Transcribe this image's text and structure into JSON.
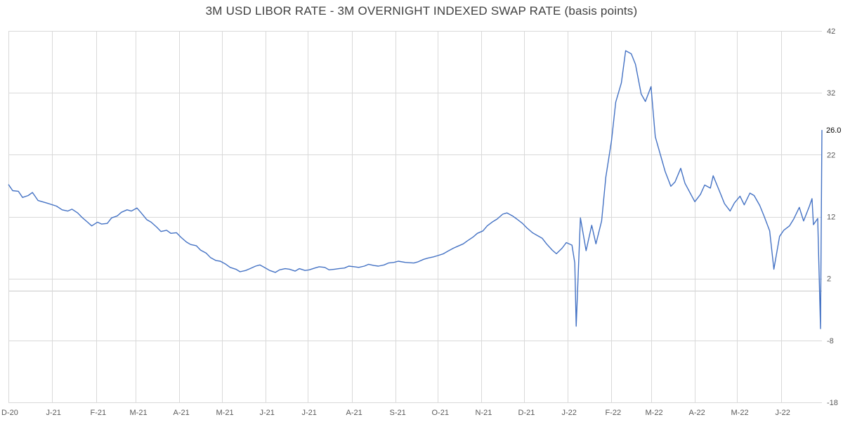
{
  "chart_data": {
    "type": "line",
    "title": "3M USD LIBOR RATE - 3M OVERNIGHT INDEXED SWAP RATE (basis points)",
    "x_tick_labels": [
      "D-20",
      "J-21",
      "F-21",
      "M-21",
      "A-21",
      "M-21",
      "J-21",
      "J-21",
      "A-21",
      "S-21",
      "O-21",
      "N-21",
      "D-21",
      "J-22",
      "F-22",
      "M-22",
      "A-22",
      "M-22",
      "J-22"
    ],
    "y_ticks": [
      42,
      32,
      22,
      12,
      2,
      -8,
      -18
    ],
    "ylim": [
      -18,
      42
    ],
    "grid": true,
    "line_color": "#4472c4",
    "last_value_label": "26.0",
    "series": [
      {
        "x": [
          "2020-12-01",
          "2020-12-04",
          "2020-12-08",
          "2020-12-11",
          "2020-12-15",
          "2020-12-18",
          "2020-12-22",
          "2020-12-28",
          "2021-01-04",
          "2021-01-08",
          "2021-01-12",
          "2021-01-15",
          "2021-01-19",
          "2021-01-22",
          "2021-01-26",
          "2021-01-29",
          "2021-02-02",
          "2021-02-05",
          "2021-02-09",
          "2021-02-12",
          "2021-02-16",
          "2021-02-19",
          "2021-02-23",
          "2021-02-26",
          "2021-03-02",
          "2021-03-05",
          "2021-03-09",
          "2021-03-12",
          "2021-03-16",
          "2021-03-19",
          "2021-03-23",
          "2021-03-26",
          "2021-03-30",
          "2021-04-02",
          "2021-04-06",
          "2021-04-09",
          "2021-04-13",
          "2021-04-16",
          "2021-04-20",
          "2021-04-23",
          "2021-04-27",
          "2021-04-30",
          "2021-05-04",
          "2021-05-07",
          "2021-05-11",
          "2021-05-14",
          "2021-05-18",
          "2021-05-21",
          "2021-05-25",
          "2021-05-28",
          "2021-06-01",
          "2021-06-04",
          "2021-06-08",
          "2021-06-11",
          "2021-06-15",
          "2021-06-18",
          "2021-06-22",
          "2021-06-25",
          "2021-06-29",
          "2021-07-02",
          "2021-07-06",
          "2021-07-09",
          "2021-07-13",
          "2021-07-16",
          "2021-07-20",
          "2021-07-23",
          "2021-07-27",
          "2021-07-30",
          "2021-08-03",
          "2021-08-06",
          "2021-08-10",
          "2021-08-13",
          "2021-08-17",
          "2021-08-20",
          "2021-08-24",
          "2021-08-27",
          "2021-08-31",
          "2021-09-03",
          "2021-09-08",
          "2021-09-14",
          "2021-09-17",
          "2021-09-21",
          "2021-09-24",
          "2021-09-28",
          "2021-10-01",
          "2021-10-05",
          "2021-10-08",
          "2021-10-12",
          "2021-10-15",
          "2021-10-19",
          "2021-10-22",
          "2021-10-26",
          "2021-10-29",
          "2021-11-02",
          "2021-11-05",
          "2021-11-09",
          "2021-11-12",
          "2021-11-16",
          "2021-11-19",
          "2021-11-23",
          "2021-11-26",
          "2021-11-30",
          "2021-12-03",
          "2021-12-07",
          "2021-12-10",
          "2021-12-14",
          "2021-12-17",
          "2021-12-21",
          "2021-12-24",
          "2021-12-28",
          "2021-12-31",
          "2022-01-04",
          "2022-01-06",
          "2022-01-07",
          "2022-01-10",
          "2022-01-12",
          "2022-01-14",
          "2022-01-18",
          "2022-01-21",
          "2022-01-25",
          "2022-01-28",
          "2022-02-01",
          "2022-02-04",
          "2022-02-08",
          "2022-02-11",
          "2022-02-15",
          "2022-02-18",
          "2022-02-22",
          "2022-02-25",
          "2022-03-01",
          "2022-03-04",
          "2022-03-08",
          "2022-03-11",
          "2022-03-14",
          "2022-03-15",
          "2022-03-18",
          "2022-03-22",
          "2022-03-25",
          "2022-03-29",
          "2022-04-01",
          "2022-04-05",
          "2022-04-08",
          "2022-04-12",
          "2022-04-14",
          "2022-04-19",
          "2022-04-22",
          "2022-04-26",
          "2022-04-29",
          "2022-05-03",
          "2022-05-06",
          "2022-05-10",
          "2022-05-13",
          "2022-05-17",
          "2022-05-20",
          "2022-05-24",
          "2022-05-27",
          "2022-05-31",
          "2022-06-03",
          "2022-06-07",
          "2022-06-10",
          "2022-06-14",
          "2022-06-17",
          "2022-06-21",
          "2022-06-23",
          "2022-06-24",
          "2022-06-27",
          "2022-06-29",
          "2022-06-30"
        ],
        "values": [
          17.2,
          16.2,
          16.1,
          15.1,
          15.4,
          15.9,
          14.6,
          14.2,
          13.7,
          13.1,
          12.9,
          13.2,
          12.6,
          11.9,
          11.1,
          10.5,
          11.1,
          10.8,
          10.9,
          11.8,
          12.1,
          12.7,
          13.1,
          12.9,
          13.4,
          12.6,
          11.5,
          11.1,
          10.3,
          9.6,
          9.8,
          9.3,
          9.4,
          8.7,
          7.9,
          7.5,
          7.3,
          6.6,
          6.1,
          5.4,
          4.9,
          4.8,
          4.3,
          3.8,
          3.5,
          3.1,
          3.3,
          3.6,
          4.0,
          4.2,
          3.7,
          3.3,
          3.0,
          3.4,
          3.6,
          3.5,
          3.2,
          3.6,
          3.3,
          3.4,
          3.7,
          3.9,
          3.8,
          3.4,
          3.5,
          3.6,
          3.7,
          4.0,
          3.9,
          3.8,
          4.0,
          4.3,
          4.1,
          4.0,
          4.2,
          4.5,
          4.6,
          4.8,
          4.6,
          4.5,
          4.7,
          5.1,
          5.3,
          5.5,
          5.7,
          6.0,
          6.4,
          6.9,
          7.2,
          7.6,
          8.1,
          8.7,
          9.3,
          9.7,
          10.5,
          11.2,
          11.6,
          12.4,
          12.6,
          12.1,
          11.6,
          10.9,
          10.2,
          9.4,
          9.0,
          8.5,
          7.6,
          6.6,
          6.0,
          6.9,
          7.8,
          7.4,
          4.5,
          -5.7,
          11.8,
          9.2,
          6.5,
          10.6,
          7.6,
          11.3,
          18.4,
          24.2,
          30.5,
          33.6,
          38.8,
          38.3,
          36.6,
          31.8,
          30.6,
          33.0,
          24.9,
          21.7,
          19.3,
          17.5,
          16.9,
          17.6,
          19.8,
          17.4,
          15.7,
          14.4,
          15.6,
          17.1,
          16.6,
          18.6,
          15.8,
          14.1,
          12.9,
          14.2,
          15.3,
          13.9,
          15.8,
          15.4,
          13.8,
          12.1,
          9.7,
          3.5,
          8.8,
          9.8,
          10.5,
          11.6,
          13.5,
          11.3,
          13.6,
          14.9,
          10.7,
          11.7,
          -6.1,
          26.0
        ]
      }
    ]
  }
}
